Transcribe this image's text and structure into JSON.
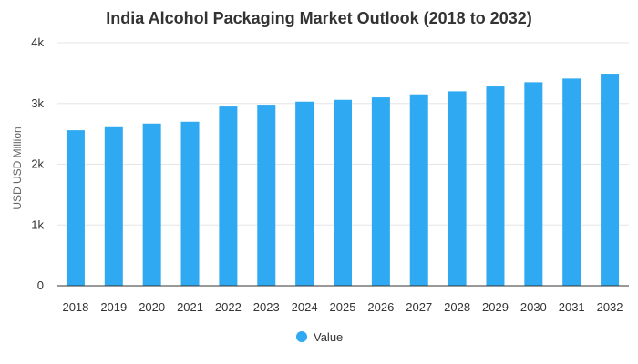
{
  "chart_data": {
    "type": "bar",
    "title": "India Alcohol Packaging Market Outlook (2018 to 2032)",
    "xlabel": "",
    "ylabel": "USD USD Million",
    "categories": [
      "2018",
      "2019",
      "2020",
      "2021",
      "2022",
      "2023",
      "2024",
      "2025",
      "2026",
      "2027",
      "2028",
      "2029",
      "2030",
      "2031",
      "2032"
    ],
    "series": [
      {
        "name": "Value",
        "color": "#2ea9f2",
        "values": [
          2560,
          2610,
          2670,
          2700,
          2950,
          2980,
          3030,
          3060,
          3100,
          3150,
          3200,
          3280,
          3350,
          3410,
          3490
        ]
      }
    ],
    "ylim": [
      0,
      4000
    ],
    "yticks": [
      {
        "value": 0,
        "label": "0"
      },
      {
        "value": 1000,
        "label": "1k"
      },
      {
        "value": 2000,
        "label": "2k"
      },
      {
        "value": 3000,
        "label": "3k"
      },
      {
        "value": 4000,
        "label": "4k"
      }
    ],
    "grid": true,
    "legend_position": "bottom-center"
  }
}
